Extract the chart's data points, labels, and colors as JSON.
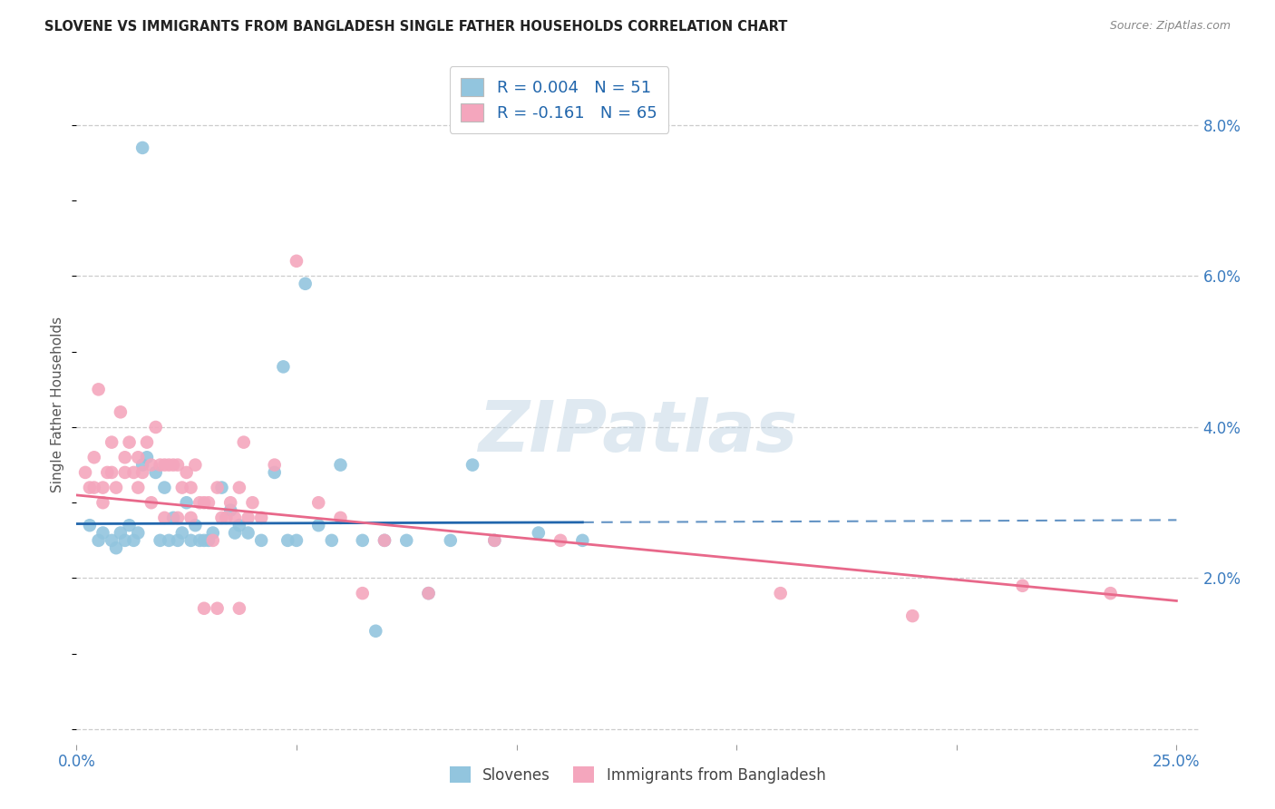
{
  "title": "SLOVENE VS IMMIGRANTS FROM BANGLADESH SINGLE FATHER HOUSEHOLDS CORRELATION CHART",
  "source": "Source: ZipAtlas.com",
  "ylabel": "Single Father Households",
  "legend_entry1": "R = 0.004   N = 51",
  "legend_entry2": "R = -0.161   N = 65",
  "legend_label1": "Slovenes",
  "legend_label2": "Immigrants from Bangladesh",
  "color_blue": "#92c5de",
  "color_pink": "#f4a6bd",
  "color_blue_line": "#2166ac",
  "color_pink_line": "#e8688a",
  "xlim": [
    0.0,
    25.5
  ],
  "ylim": [
    -0.2,
    8.8
  ],
  "blue_x": [
    1.5,
    5.2,
    4.7,
    0.3,
    0.5,
    0.6,
    0.8,
    0.9,
    1.0,
    1.1,
    1.2,
    1.3,
    1.4,
    1.5,
    1.6,
    1.8,
    1.9,
    2.0,
    2.1,
    2.2,
    2.3,
    2.4,
    2.5,
    2.6,
    2.7,
    2.8,
    3.0,
    3.1,
    3.3,
    3.5,
    3.7,
    3.9,
    4.2,
    4.5,
    5.0,
    5.5,
    6.0,
    7.0,
    7.5,
    8.5,
    9.5,
    10.5,
    11.5,
    6.5,
    8.0,
    9.0,
    2.9,
    3.6,
    4.8,
    5.8,
    6.8
  ],
  "blue_y": [
    7.7,
    5.9,
    4.8,
    2.7,
    2.5,
    2.6,
    2.5,
    2.4,
    2.6,
    2.5,
    2.7,
    2.5,
    2.6,
    3.5,
    3.6,
    3.4,
    2.5,
    3.2,
    2.5,
    2.8,
    2.5,
    2.6,
    3.0,
    2.5,
    2.7,
    2.5,
    2.5,
    2.6,
    3.2,
    2.9,
    2.7,
    2.6,
    2.5,
    3.4,
    2.5,
    2.7,
    3.5,
    2.5,
    2.5,
    2.5,
    2.5,
    2.6,
    2.5,
    2.5,
    1.8,
    3.5,
    2.5,
    2.6,
    2.5,
    2.5,
    1.3
  ],
  "pink_x": [
    0.2,
    0.3,
    0.4,
    0.5,
    0.6,
    0.7,
    0.8,
    0.9,
    1.0,
    1.1,
    1.2,
    1.3,
    1.4,
    1.5,
    1.6,
    1.7,
    1.8,
    1.9,
    2.0,
    2.1,
    2.2,
    2.3,
    2.4,
    2.5,
    2.6,
    2.7,
    2.8,
    2.9,
    3.0,
    3.1,
    3.2,
    3.3,
    3.4,
    3.5,
    3.6,
    3.7,
    3.8,
    3.9,
    4.0,
    4.2,
    4.5,
    5.0,
    5.5,
    6.0,
    6.5,
    7.0,
    8.0,
    9.5,
    11.0,
    16.0,
    19.0,
    21.5,
    23.5,
    0.4,
    0.6,
    0.8,
    1.1,
    1.4,
    1.7,
    2.0,
    2.3,
    2.6,
    2.9,
    3.2,
    3.7
  ],
  "pink_y": [
    3.4,
    3.2,
    3.6,
    4.5,
    3.2,
    3.4,
    3.8,
    3.2,
    4.2,
    3.6,
    3.8,
    3.4,
    3.6,
    3.4,
    3.8,
    3.5,
    4.0,
    3.5,
    3.5,
    3.5,
    3.5,
    3.5,
    3.2,
    3.4,
    3.2,
    3.5,
    3.0,
    3.0,
    3.0,
    2.5,
    3.2,
    2.8,
    2.8,
    3.0,
    2.8,
    3.2,
    3.8,
    2.8,
    3.0,
    2.8,
    3.5,
    6.2,
    3.0,
    2.8,
    1.8,
    2.5,
    1.8,
    2.5,
    2.5,
    1.8,
    1.5,
    1.9,
    1.8,
    3.2,
    3.0,
    3.4,
    3.4,
    3.2,
    3.0,
    2.8,
    2.8,
    2.8,
    1.6,
    1.6,
    1.6
  ],
  "blue_line_solid_end": 11.5,
  "blue_line_start": 0.0,
  "blue_line_end": 25.0,
  "pink_line_start": 0.0,
  "pink_line_end": 25.0,
  "blue_line_y_start": 2.72,
  "blue_line_y_end_solid": 2.74,
  "blue_line_y_end_dash": 2.77,
  "pink_line_y_start": 3.1,
  "pink_line_y_end": 1.7
}
